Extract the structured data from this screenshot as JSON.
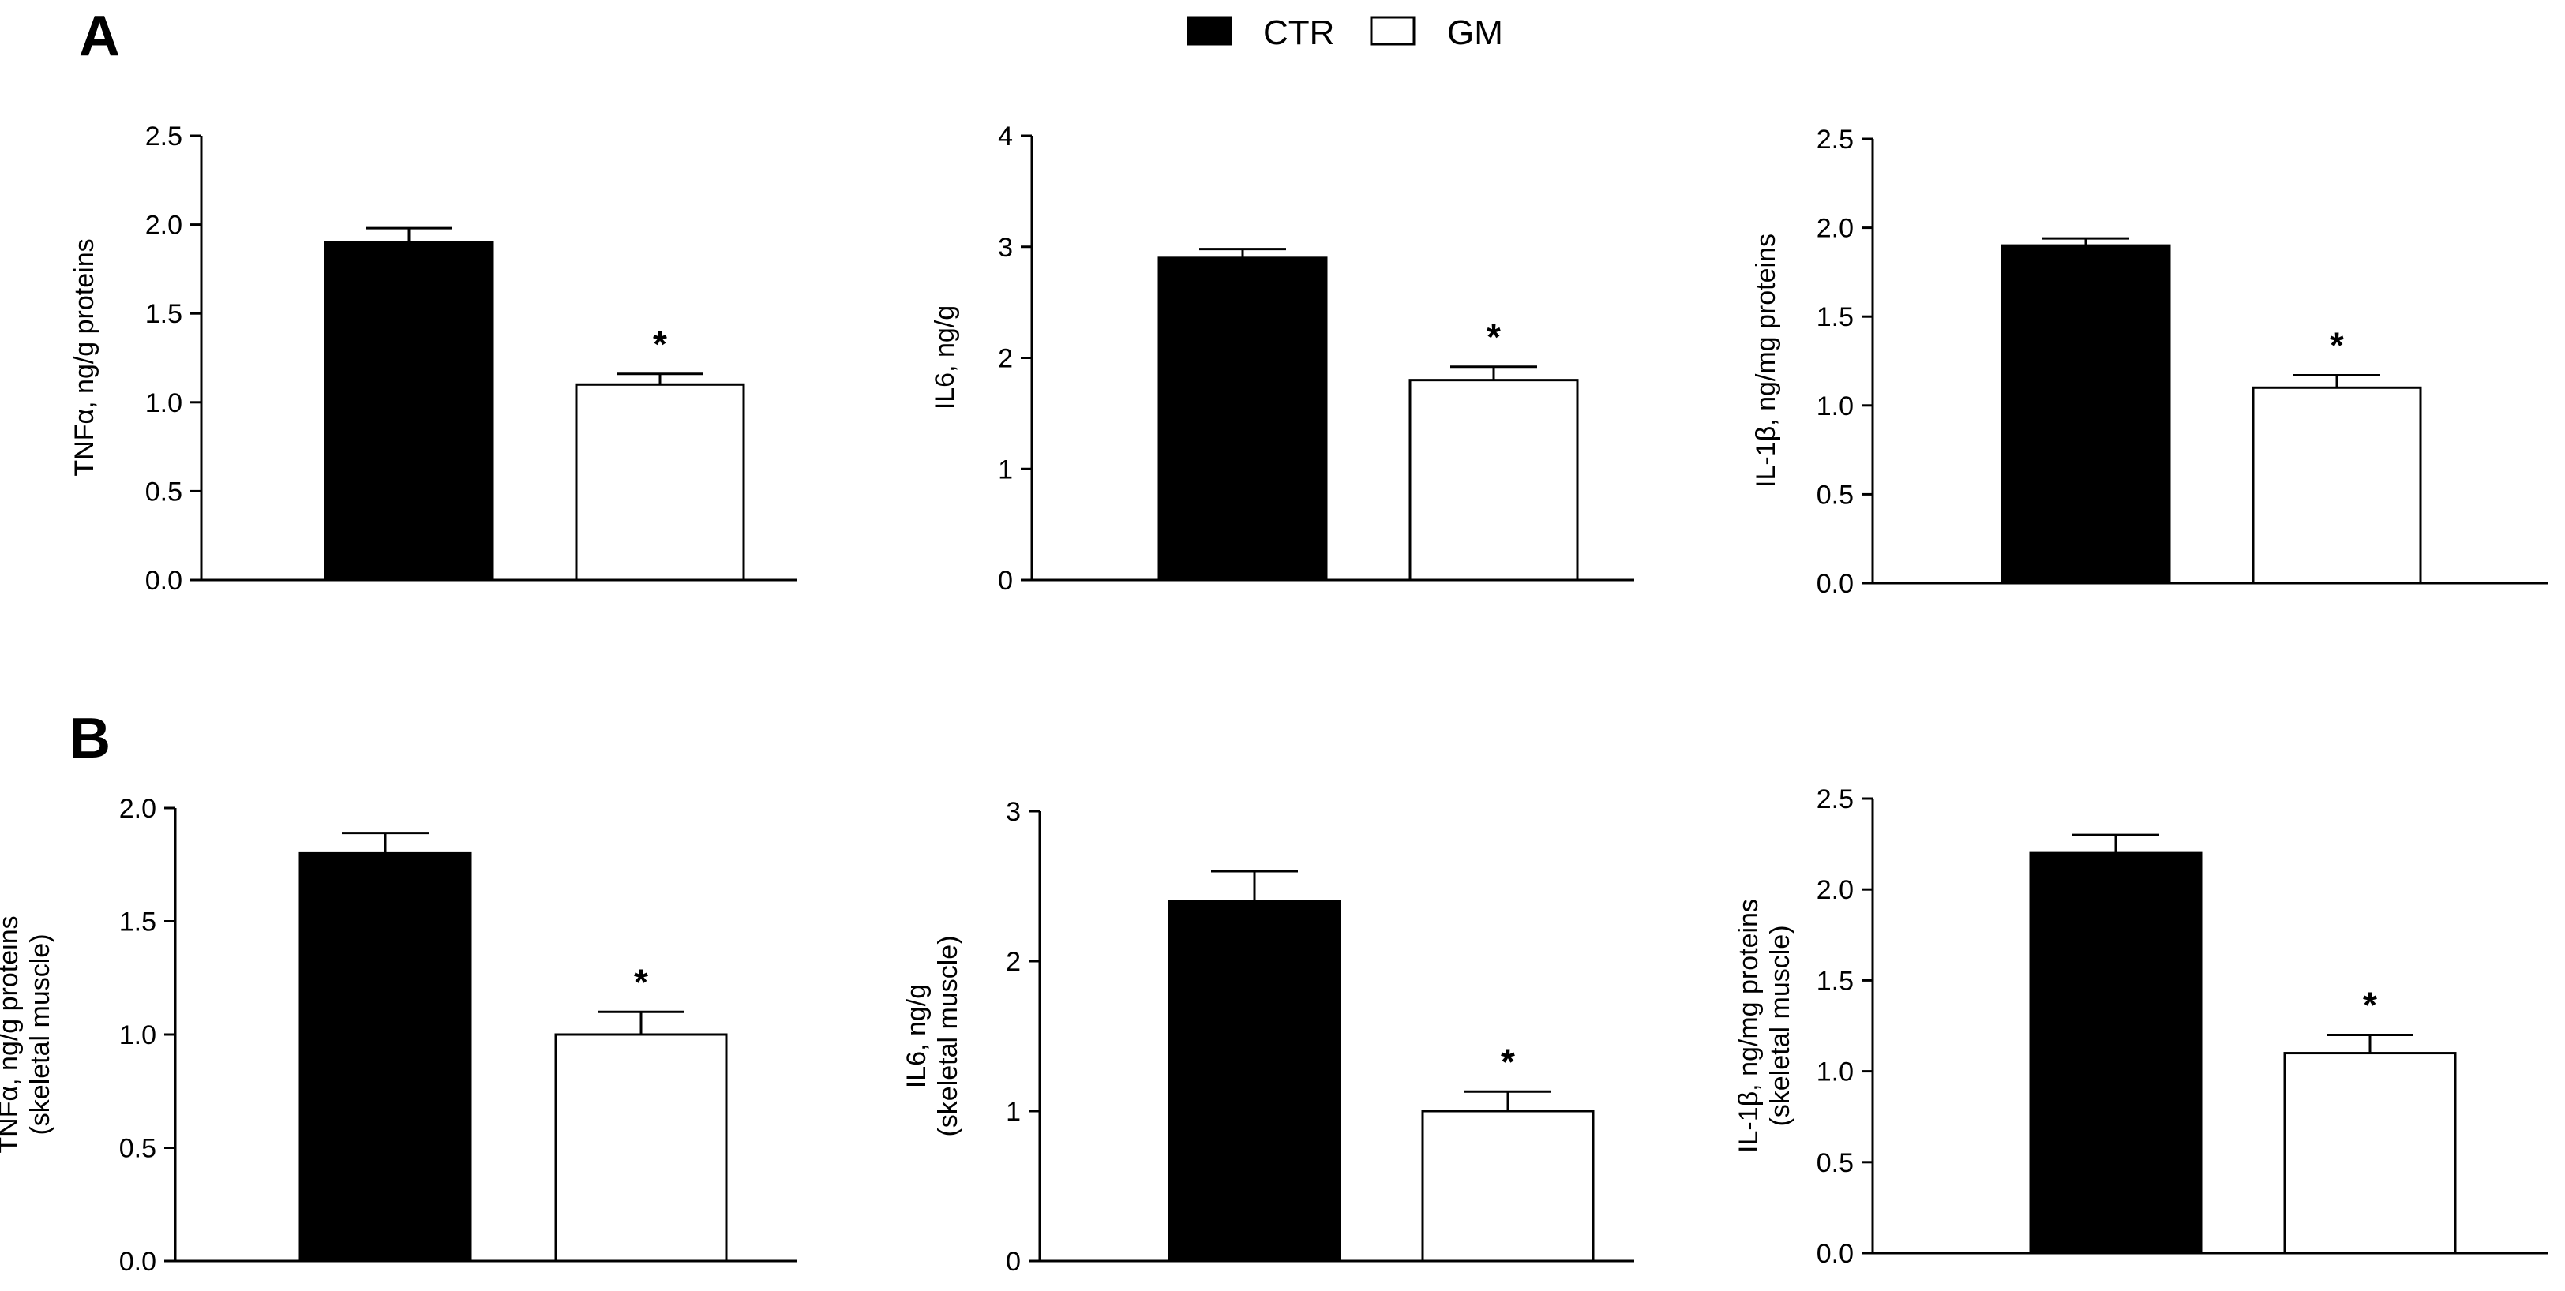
{
  "legend": {
    "items": [
      {
        "label": "CTR",
        "color": "#000000"
      },
      {
        "label": "GM",
        "color": "#ffffff"
      }
    ]
  },
  "panels": [
    {
      "label": "A"
    },
    {
      "label": "B"
    }
  ],
  "chart_data": [
    {
      "type": "bar",
      "panel": "A",
      "categories": [
        "CTR",
        "GM"
      ],
      "values": [
        1.9,
        1.1
      ],
      "errors": [
        0.08,
        0.06
      ],
      "significance": [
        "",
        "*"
      ],
      "ylabel": [
        "TNFα, ng/g proteins"
      ],
      "ylim": [
        0,
        2.5
      ],
      "yticks": [
        "0.0",
        "0.5",
        "1.0",
        "1.5",
        "2.0",
        "2.5"
      ],
      "tick_values": [
        0,
        0.5,
        1.0,
        1.5,
        2.0,
        2.5
      ]
    },
    {
      "type": "bar",
      "panel": "A",
      "categories": [
        "CTR",
        "GM"
      ],
      "values": [
        2.9,
        1.8
      ],
      "errors": [
        0.08,
        0.12
      ],
      "significance": [
        "",
        "*"
      ],
      "ylabel": [
        "IL6, ng/g"
      ],
      "ylim": [
        0,
        4
      ],
      "yticks": [
        "0",
        "1",
        "2",
        "3",
        "4"
      ],
      "tick_values": [
        0,
        1,
        2,
        3,
        4
      ]
    },
    {
      "type": "bar",
      "panel": "A",
      "categories": [
        "CTR",
        "GM"
      ],
      "values": [
        1.9,
        1.1
      ],
      "errors": [
        0.04,
        0.07
      ],
      "significance": [
        "",
        "*"
      ],
      "ylabel": [
        "IL-1β, ng/mg proteins"
      ],
      "ylim": [
        0,
        2.5
      ],
      "yticks": [
        "0.0",
        "0.5",
        "1.0",
        "1.5",
        "2.0",
        "2.5"
      ],
      "tick_values": [
        0,
        0.5,
        1.0,
        1.5,
        2.0,
        2.5
      ]
    },
    {
      "type": "bar",
      "panel": "B",
      "categories": [
        "CTR",
        "GM"
      ],
      "values": [
        1.8,
        1.0
      ],
      "errors": [
        0.09,
        0.1
      ],
      "significance": [
        "",
        "*"
      ],
      "ylabel": [
        "TNFα, ng/g proteins",
        "(skeletal muscle)"
      ],
      "ylim": [
        0,
        2.0
      ],
      "yticks": [
        "0.0",
        "0.5",
        "1.0",
        "1.5",
        "2.0"
      ],
      "tick_values": [
        0,
        0.5,
        1.0,
        1.5,
        2.0
      ]
    },
    {
      "type": "bar",
      "panel": "B",
      "categories": [
        "CTR",
        "GM"
      ],
      "values": [
        2.4,
        1.0
      ],
      "errors": [
        0.2,
        0.13
      ],
      "significance": [
        "",
        "*"
      ],
      "ylabel": [
        "IL6, ng/g",
        "(skeletal muscle)"
      ],
      "ylim": [
        0,
        3
      ],
      "yticks": [
        "0",
        "1",
        "2",
        "3"
      ],
      "tick_values": [
        0,
        1,
        2,
        3
      ]
    },
    {
      "type": "bar",
      "panel": "B",
      "categories": [
        "CTR",
        "GM"
      ],
      "values": [
        2.2,
        1.1
      ],
      "errors": [
        0.1,
        0.1
      ],
      "significance": [
        "",
        "*"
      ],
      "ylabel": [
        "IL-1β, ng/mg proteins",
        "(skeletal muscle)"
      ],
      "ylim": [
        0,
        2.5
      ],
      "yticks": [
        "0.0",
        "0.5",
        "1.0",
        "1.5",
        "2.0",
        "2.5"
      ],
      "tick_values": [
        0,
        0.5,
        1.0,
        1.5,
        2.0,
        2.5
      ]
    }
  ]
}
